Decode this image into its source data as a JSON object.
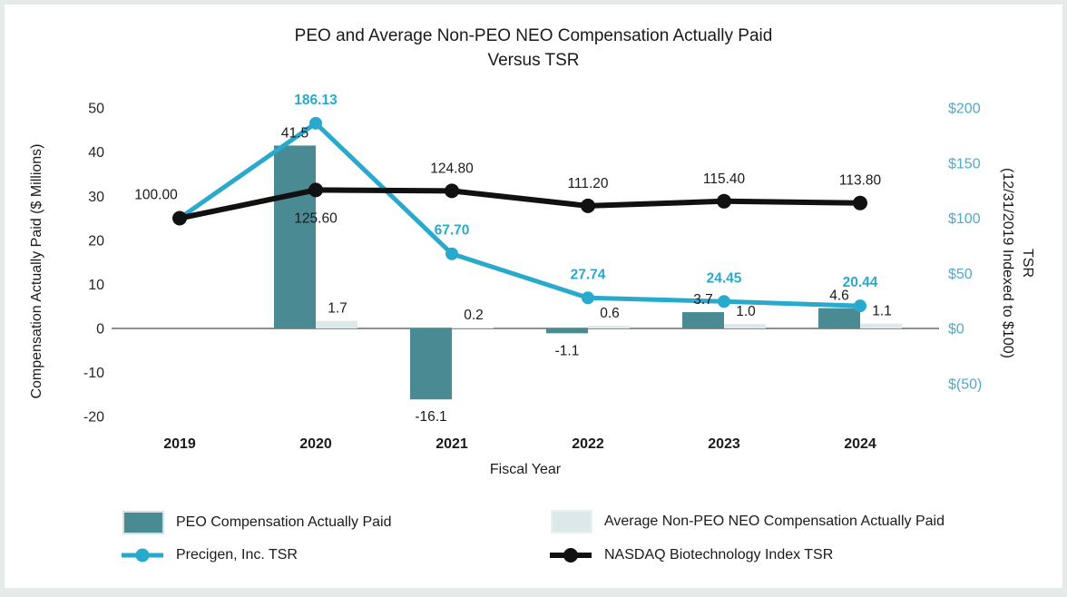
{
  "title": {
    "line1": "PEO and Average Non-PEO NEO Compensation Actually Paid",
    "line2": "Versus TSR"
  },
  "colors": {
    "peo_bar_teal": "#4A8B93",
    "non_peo_bar_light": "#DCE8E9",
    "precigen_blue": "#29A9CB",
    "nasdaq_black": "#111111",
    "right_tick_blue": "#4FAACB",
    "left_tick_gray": "#262626",
    "zero_line_gray": "#8A9090",
    "frame_border": "#E4EBE9"
  },
  "chart_data": {
    "type": "combo_bar_line",
    "title": "PEO and Average Non-PEO NEO Compensation Actually Paid Versus TSR",
    "grid": "none",
    "legend_position": "bottom",
    "categories": [
      "2019",
      "2020",
      "2021",
      "2022",
      "2023",
      "2024"
    ],
    "x_axis": {
      "title": "Fiscal Year"
    },
    "left_axis": {
      "title": "Compensation Actually Paid ($ Millions)",
      "range": [
        -20,
        50
      ],
      "ticks": [
        {
          "value": 50,
          "label": "50"
        },
        {
          "value": 40,
          "label": "40"
        },
        {
          "value": 30,
          "label": "30"
        },
        {
          "value": 20,
          "label": "20"
        },
        {
          "value": 10,
          "label": "10"
        },
        {
          "value": 0,
          "label": "0"
        },
        {
          "value": -10,
          "label": "-10"
        },
        {
          "value": -20,
          "label": "-20"
        }
      ]
    },
    "right_axis": {
      "title_line1": "TSR",
      "title_line2": "(12/31/2019 Indexed to $100)",
      "range": [
        -50,
        200
      ],
      "ticks": [
        {
          "value": 200,
          "label": "$200"
        },
        {
          "value": 150,
          "label": "$150"
        },
        {
          "value": 100,
          "label": "$100"
        },
        {
          "value": 50,
          "label": "$50"
        },
        {
          "value": 0,
          "label": "$0"
        },
        {
          "value": -50,
          "label": "$(50)"
        }
      ]
    },
    "series": [
      {
        "name": "PEO Compensation Actually Paid",
        "type": "bar",
        "axis": "left",
        "color": "#4A8B93",
        "values": [
          null,
          41.5,
          -16.1,
          -1.1,
          3.7,
          4.6
        ],
        "labels": [
          "",
          "41.5",
          "-16.1",
          "-1.1",
          "3.7",
          "4.6"
        ]
      },
      {
        "name": "Average Non-PEO NEO Compensation Actually Paid",
        "type": "bar",
        "axis": "left",
        "color": "#DCE8E9",
        "values": [
          null,
          1.7,
          0.2,
          0.6,
          1.0,
          1.1
        ],
        "labels": [
          "",
          "1.7",
          "0.2",
          "0.6",
          "1.0",
          "1.1"
        ]
      },
      {
        "name": "Precigen, Inc. TSR",
        "type": "line",
        "axis": "right",
        "color": "#29A9CB",
        "values": [
          100,
          186.13,
          67.7,
          27.74,
          24.45,
          20.44
        ],
        "labels": [
          "",
          "186.13",
          "67.70",
          "27.74",
          "24.45",
          "20.44"
        ]
      },
      {
        "name": "NASDAQ Biotechnology Index TSR",
        "type": "line",
        "axis": "right",
        "color": "#111111",
        "values": [
          100,
          125.6,
          124.8,
          111.2,
          115.4,
          113.8
        ],
        "labels": [
          "100.00",
          "125.60",
          "124.80",
          "111.20",
          "115.40",
          "113.80"
        ]
      }
    ]
  },
  "legend": {
    "items": [
      {
        "label": "PEO Compensation Actually Paid",
        "marker": "bar",
        "color": "#4A8B93"
      },
      {
        "label": "Average Non-PEO NEO Compensation Actually Paid",
        "marker": "bar",
        "color": "#DCE8E9"
      },
      {
        "label": "Precigen, Inc. TSR",
        "marker": "line",
        "color": "#29A9CB"
      },
      {
        "label": "NASDAQ Biotechnology Index TSR",
        "marker": "line",
        "color": "#111111"
      }
    ]
  }
}
